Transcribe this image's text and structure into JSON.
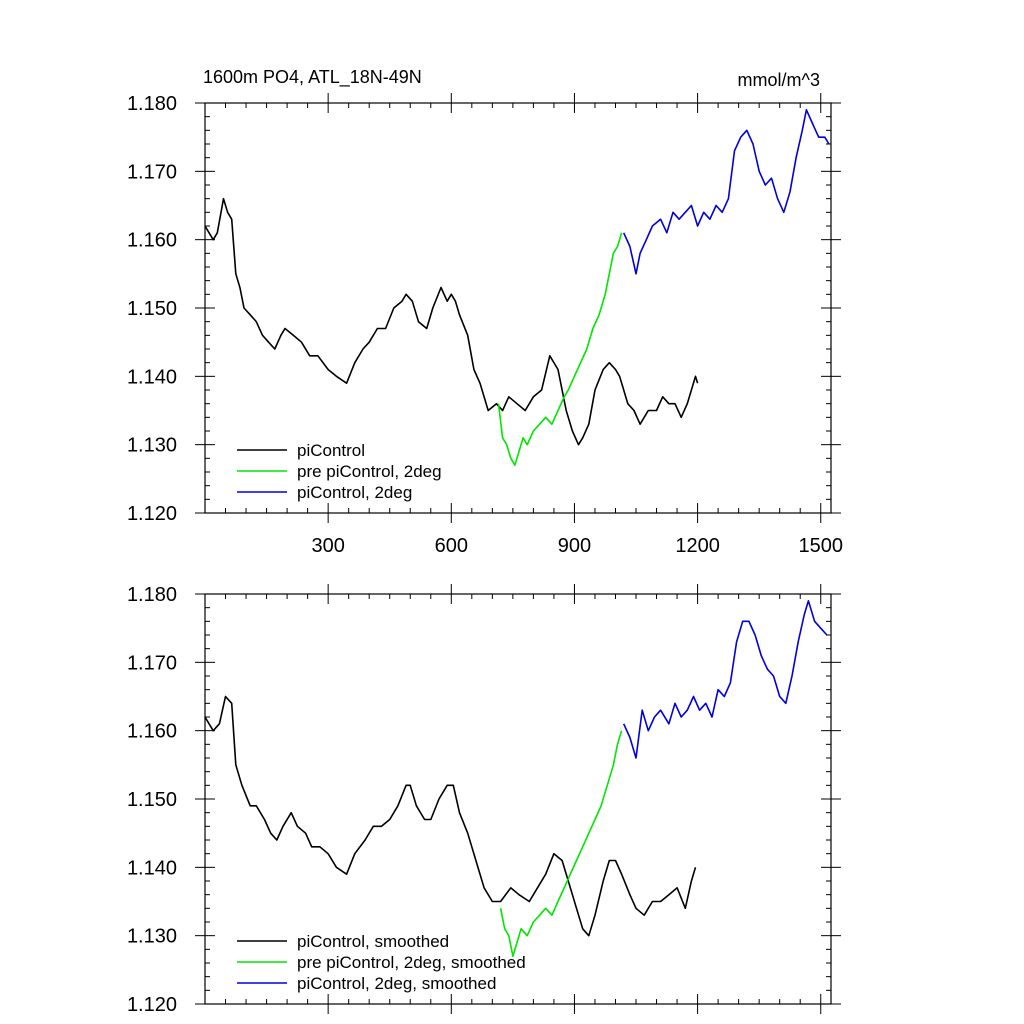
{
  "figure": {
    "title_left": "1600m PO4, ATL_18N-49N",
    "title_right": "mmol/m^3"
  },
  "chart_data": [
    {
      "type": "line",
      "panel": "top",
      "xlim": [
        0,
        1525
      ],
      "ylim": [
        1.12,
        1.18
      ],
      "xticks": [
        300,
        600,
        900,
        1200,
        1500
      ],
      "xtick_labels": [
        "300",
        "600",
        "900",
        "1200",
        "1500"
      ],
      "yticks": [
        1.12,
        1.13,
        1.14,
        1.15,
        1.16,
        1.17,
        1.18
      ],
      "ytick_labels": [
        "1.120",
        "1.130",
        "1.140",
        "1.150",
        "1.160",
        "1.170",
        "1.180"
      ],
      "legend_position": "bottom-left",
      "series": [
        {
          "name": "piControl",
          "color": "#000000",
          "x": [
            0,
            20,
            30,
            45,
            55,
            65,
            75,
            85,
            95,
            110,
            125,
            140,
            155,
            170,
            185,
            195,
            215,
            235,
            255,
            275,
            300,
            320,
            345,
            365,
            385,
            400,
            420,
            440,
            460,
            480,
            490,
            505,
            520,
            540,
            555,
            575,
            590,
            600,
            610,
            620,
            640,
            655,
            670,
            690,
            710,
            725,
            740,
            760,
            780,
            800,
            820,
            840,
            860,
            870,
            880,
            895,
            910,
            920,
            935,
            950,
            970,
            985,
            1000,
            1010,
            1030,
            1045,
            1060,
            1080,
            1100,
            1115,
            1130,
            1145,
            1160,
            1175,
            1185,
            1195,
            1200
          ],
          "y": [
            1.162,
            1.16,
            1.161,
            1.166,
            1.164,
            1.163,
            1.155,
            1.153,
            1.15,
            1.149,
            1.148,
            1.146,
            1.145,
            1.144,
            1.146,
            1.147,
            1.146,
            1.145,
            1.143,
            1.143,
            1.141,
            1.14,
            1.139,
            1.142,
            1.144,
            1.145,
            1.147,
            1.147,
            1.15,
            1.151,
            1.152,
            1.151,
            1.148,
            1.147,
            1.15,
            1.153,
            1.151,
            1.152,
            1.151,
            1.149,
            1.146,
            1.141,
            1.139,
            1.135,
            1.136,
            1.135,
            1.137,
            1.136,
            1.135,
            1.137,
            1.138,
            1.143,
            1.141,
            1.138,
            1.135,
            1.132,
            1.13,
            1.131,
            1.133,
            1.138,
            1.141,
            1.142,
            1.141,
            1.14,
            1.136,
            1.135,
            1.133,
            1.135,
            1.135,
            1.137,
            1.136,
            1.136,
            1.134,
            1.136,
            1.138,
            1.14,
            1.139
          ]
        },
        {
          "name": "pre piControl, 2deg",
          "color": "#00e600",
          "x": [
            715,
            725,
            735,
            745,
            755,
            765,
            775,
            785,
            800,
            815,
            830,
            845,
            860,
            875,
            885,
            900,
            915,
            930,
            945,
            960,
            975,
            985,
            995,
            1005,
            1015
          ],
          "y": [
            1.136,
            1.131,
            1.13,
            1.128,
            1.127,
            1.129,
            1.131,
            1.13,
            1.132,
            1.133,
            1.134,
            1.133,
            1.135,
            1.137,
            1.138,
            1.14,
            1.142,
            1.144,
            1.147,
            1.149,
            1.152,
            1.155,
            1.158,
            1.159,
            1.161
          ]
        },
        {
          "name": "piControl, 2deg",
          "color": "#0000dd",
          "x": [
            1020,
            1035,
            1050,
            1060,
            1075,
            1090,
            1110,
            1125,
            1140,
            1155,
            1170,
            1185,
            1200,
            1215,
            1230,
            1245,
            1260,
            1275,
            1290,
            1305,
            1320,
            1335,
            1350,
            1365,
            1380,
            1395,
            1410,
            1425,
            1440,
            1455,
            1465,
            1480,
            1495,
            1510,
            1520
          ],
          "y": [
            1.161,
            1.159,
            1.155,
            1.158,
            1.16,
            1.162,
            1.163,
            1.161,
            1.164,
            1.163,
            1.164,
            1.165,
            1.162,
            1.164,
            1.163,
            1.165,
            1.164,
            1.166,
            1.173,
            1.175,
            1.176,
            1.174,
            1.17,
            1.168,
            1.169,
            1.166,
            1.164,
            1.167,
            1.172,
            1.176,
            1.179,
            1.177,
            1.175,
            1.175,
            1.174
          ]
        }
      ]
    },
    {
      "type": "line",
      "panel": "bottom",
      "xlim": [
        0,
        1525
      ],
      "ylim": [
        1.12,
        1.18
      ],
      "xticks": [
        300,
        600,
        900,
        1200,
        1500
      ],
      "xtick_labels": [],
      "yticks": [
        1.12,
        1.13,
        1.14,
        1.15,
        1.16,
        1.17,
        1.18
      ],
      "ytick_labels": [
        "1.120",
        "1.130",
        "1.140",
        "1.150",
        "1.160",
        "1.170",
        "1.180"
      ],
      "legend_position": "bottom-left",
      "series": [
        {
          "name": "piControl, smoothed",
          "color": "#000000",
          "x": [
            0,
            20,
            35,
            50,
            65,
            75,
            90,
            110,
            125,
            145,
            160,
            175,
            190,
            210,
            225,
            245,
            260,
            280,
            300,
            320,
            345,
            365,
            390,
            410,
            430,
            450,
            470,
            490,
            500,
            515,
            535,
            550,
            570,
            590,
            605,
            620,
            640,
            660,
            680,
            700,
            720,
            745,
            765,
            790,
            810,
            830,
            850,
            870,
            885,
            905,
            920,
            935,
            950,
            970,
            985,
            1000,
            1015,
            1035,
            1050,
            1070,
            1090,
            1110,
            1130,
            1150,
            1170,
            1185,
            1195
          ],
          "y": [
            1.162,
            1.16,
            1.161,
            1.165,
            1.164,
            1.155,
            1.152,
            1.149,
            1.149,
            1.147,
            1.145,
            1.144,
            1.146,
            1.148,
            1.146,
            1.145,
            1.143,
            1.143,
            1.142,
            1.14,
            1.139,
            1.142,
            1.144,
            1.146,
            1.146,
            1.147,
            1.149,
            1.152,
            1.152,
            1.149,
            1.147,
            1.147,
            1.15,
            1.152,
            1.152,
            1.148,
            1.145,
            1.141,
            1.137,
            1.135,
            1.135,
            1.137,
            1.136,
            1.135,
            1.137,
            1.139,
            1.142,
            1.141,
            1.138,
            1.134,
            1.131,
            1.13,
            1.133,
            1.138,
            1.141,
            1.141,
            1.139,
            1.136,
            1.134,
            1.133,
            1.135,
            1.135,
            1.136,
            1.137,
            1.134,
            1.138,
            1.14
          ]
        },
        {
          "name": "pre piControl, 2deg, smoothed",
          "color": "#00e600",
          "x": [
            720,
            730,
            740,
            750,
            760,
            770,
            785,
            800,
            815,
            830,
            845,
            860,
            875,
            890,
            905,
            920,
            935,
            950,
            965,
            980,
            995,
            1005,
            1015
          ],
          "y": [
            1.134,
            1.131,
            1.13,
            1.127,
            1.129,
            1.131,
            1.13,
            1.132,
            1.133,
            1.134,
            1.133,
            1.135,
            1.137,
            1.139,
            1.141,
            1.143,
            1.145,
            1.147,
            1.149,
            1.152,
            1.155,
            1.158,
            1.16
          ]
        },
        {
          "name": "piControl, 2deg, smoothed",
          "color": "#0000dd",
          "x": [
            1020,
            1035,
            1050,
            1065,
            1080,
            1095,
            1110,
            1130,
            1145,
            1160,
            1175,
            1190,
            1205,
            1220,
            1235,
            1250,
            1265,
            1280,
            1295,
            1310,
            1325,
            1340,
            1355,
            1370,
            1385,
            1400,
            1415,
            1430,
            1445,
            1460,
            1470,
            1485,
            1500,
            1515
          ],
          "y": [
            1.161,
            1.159,
            1.156,
            1.163,
            1.16,
            1.162,
            1.163,
            1.161,
            1.164,
            1.162,
            1.163,
            1.165,
            1.163,
            1.164,
            1.162,
            1.166,
            1.165,
            1.167,
            1.173,
            1.176,
            1.176,
            1.174,
            1.171,
            1.169,
            1.168,
            1.165,
            1.164,
            1.168,
            1.173,
            1.177,
            1.179,
            1.176,
            1.175,
            1.174
          ]
        }
      ]
    }
  ]
}
